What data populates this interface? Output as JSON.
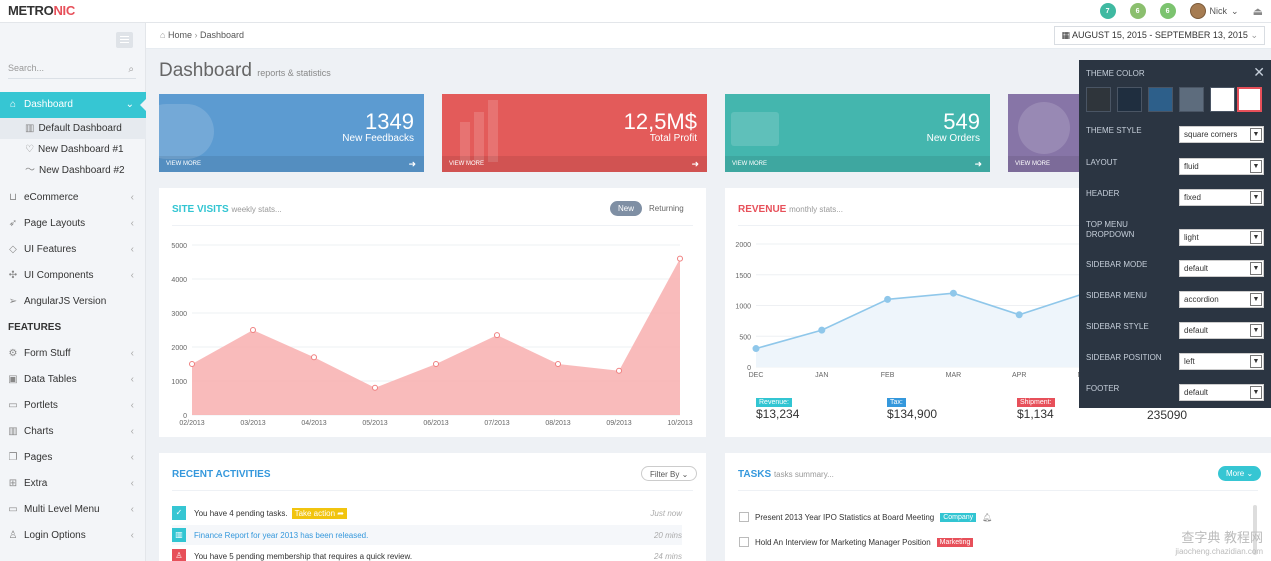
{
  "header": {
    "logo_main": "METRO",
    "logo_accent": "NIC",
    "badges": [
      "7",
      "6",
      "6"
    ],
    "user_name": "Nick"
  },
  "sidebar": {
    "search_placeholder": "Search...",
    "items": [
      {
        "label": "Dashboard",
        "icon": "home-icon"
      },
      {
        "label": "eCommerce",
        "icon": "basket-icon"
      },
      {
        "label": "Page Layouts",
        "icon": "rocket-icon"
      },
      {
        "label": "UI Features",
        "icon": "diamond-icon"
      },
      {
        "label": "UI Components",
        "icon": "puzzle-icon"
      },
      {
        "label": "AngularJS Version",
        "icon": "paper-plane-icon"
      }
    ],
    "subitems": [
      "Default Dashboard",
      "New Dashboard #1",
      "New Dashboard #2"
    ],
    "section_heading": "FEATURES",
    "feature_items": [
      "Form Stuff",
      "Data Tables",
      "Portlets",
      "Charts",
      "Pages",
      "Extra",
      "Multi Level Menu",
      "Login Options"
    ]
  },
  "breadcrumb": {
    "home": "Home",
    "current": "Dashboard"
  },
  "daterange": "AUGUST 15, 2015 - SEPTEMBER 13, 2015",
  "page": {
    "title": "Dashboard",
    "subtitle": "reports & statistics"
  },
  "tiles": [
    {
      "number": "1349",
      "desc": "New Feedbacks",
      "more": "VIEW MORE",
      "color": "#3598dc"
    },
    {
      "number": "12,5M$",
      "desc": "Total Profit",
      "more": "VIEW MORE",
      "color": "#e7505a"
    },
    {
      "number": "549",
      "desc": "New Orders",
      "more": "VIEW MORE",
      "color": "#32c5d2"
    },
    {
      "number": "",
      "desc": "",
      "more": "VIEW MORE",
      "color": "#8e44ad"
    }
  ],
  "site_visits": {
    "title": "SITE VISITS",
    "subtitle": "weekly stats...",
    "btn_new": "New",
    "btn_returning": "Returning"
  },
  "revenue": {
    "title": "REVENUE",
    "subtitle": "monthly stats...",
    "stats": [
      {
        "label": "Revenue:",
        "value": "$13,234",
        "color": "#32c5d2"
      },
      {
        "label": "Tax:",
        "value": "$134,900",
        "color": "#3598dc"
      },
      {
        "label": "Shipment:",
        "value": "$1,134",
        "color": "#e7505a"
      },
      {
        "label": "",
        "value": "235090",
        "color": ""
      }
    ]
  },
  "theme_panel": {
    "title": "THEME COLOR",
    "swatches": [
      "#2f353b",
      "#1f2e3f",
      "#2d5f8a",
      "#5d6c7d",
      "#ffffff",
      "#ffffff"
    ],
    "rows": [
      {
        "label": "THEME STYLE",
        "value": "square corners"
      },
      {
        "label": "LAYOUT",
        "value": "fluid"
      },
      {
        "label": "HEADER",
        "value": "fixed"
      },
      {
        "label": "TOP MENU DROPDOWN",
        "value": "light"
      },
      {
        "label": "SIDEBAR MODE",
        "value": "default"
      },
      {
        "label": "SIDEBAR MENU",
        "value": "accordion"
      },
      {
        "label": "SIDEBAR STYLE",
        "value": "default"
      },
      {
        "label": "SIDEBAR POSITION",
        "value": "left"
      },
      {
        "label": "FOOTER",
        "value": "default"
      }
    ]
  },
  "recent": {
    "title": "RECENT ACTIVITIES",
    "filter": "Filter By",
    "items": [
      {
        "text": "You have 4 pending tasks.",
        "action": "Take action",
        "time": "Just now",
        "color": "#36c6d3"
      },
      {
        "text": "Finance Report for year 2013 has been released.",
        "action": "",
        "time": "20 mins",
        "color": "#32c5d2"
      },
      {
        "text": "You have 5 pending membership that requires a quick review.",
        "action": "",
        "time": "24 mins",
        "color": "#e7505a"
      }
    ]
  },
  "tasks": {
    "title": "TASKS",
    "subtitle": "tasks summary...",
    "more": "More",
    "items": [
      {
        "text": "Present 2013 Year IPO Statistics at Board Meeting",
        "tag": "Company",
        "tag_color": "#32c5d2"
      },
      {
        "text": "Hold An Interview for Marketing Manager Position",
        "tag": "Marketing",
        "tag_color": "#e7505a"
      }
    ]
  },
  "watermark": {
    "line1": "查字典 教程网",
    "line2": "jiaocheng.chazidian.com"
  },
  "chart_data": [
    {
      "type": "area",
      "categories": [
        "02/2013",
        "03/2013",
        "04/2013",
        "05/2013",
        "06/2013",
        "07/2013",
        "08/2013",
        "09/2013",
        "10/2013"
      ],
      "series": [
        {
          "values": [
            1500,
            2500,
            1700,
            800,
            1500,
            2350,
            1500,
            1300,
            4600
          ]
        }
      ],
      "ylim": [
        0,
        5000
      ],
      "yticks": [
        0,
        1000,
        2000,
        3000,
        4000,
        5000
      ],
      "grid": true,
      "color": "#f8b4b4"
    },
    {
      "type": "line",
      "categories": [
        "DEC",
        "JAN",
        "FEB",
        "MAR",
        "APR",
        "MAY"
      ],
      "series": [
        {
          "values": [
            300,
            600,
            1100,
            1200,
            850,
            1200
          ]
        }
      ],
      "ylim": [
        0,
        2000
      ],
      "yticks": [
        0,
        500,
        1000,
        1500,
        2000
      ],
      "grid": true,
      "color": "#8fc7ea"
    }
  ]
}
